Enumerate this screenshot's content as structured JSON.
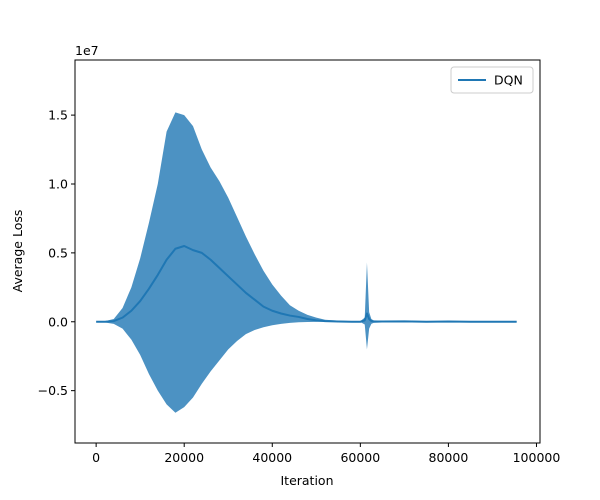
{
  "chart_data": {
    "type": "line",
    "xlabel": "Iteration",
    "ylabel": "Average Loss",
    "y_offset_text": "1e7",
    "xlim": [
      -4800,
      100800
    ],
    "ylim": [
      -0.88,
      1.9
    ],
    "x_ticks": [
      0,
      20000,
      40000,
      60000,
      80000,
      100000
    ],
    "x_tick_labels": [
      "0",
      "20000",
      "40000",
      "60000",
      "80000",
      "100000"
    ],
    "y_ticks": [
      -0.5,
      0.0,
      0.5,
      1.0,
      1.5
    ],
    "y_tick_labels": [
      "−0.5",
      "0.0",
      "0.5",
      "1.0",
      "1.5"
    ],
    "grid": false,
    "legend_position": "top-right",
    "colors": {
      "line": "#1f77b4",
      "band": "#1f77b4"
    },
    "series": [
      {
        "name": "DQN",
        "x": [
          0,
          2000,
          4000,
          6000,
          8000,
          10000,
          12000,
          14000,
          16000,
          18000,
          20000,
          22000,
          24000,
          26000,
          28000,
          30000,
          32000,
          34000,
          36000,
          38000,
          40000,
          42000,
          44000,
          46000,
          48000,
          50000,
          52000,
          55000,
          58000,
          60000,
          61000,
          61500,
          62000,
          62500,
          63000,
          65000,
          70000,
          75000,
          80000,
          85000,
          90000,
          95500
        ],
        "mean": [
          0,
          0,
          0.005,
          0.03,
          0.08,
          0.15,
          0.24,
          0.34,
          0.45,
          0.53,
          0.55,
          0.52,
          0.5,
          0.45,
          0.39,
          0.33,
          0.27,
          0.21,
          0.16,
          0.11,
          0.08,
          0.06,
          0.045,
          0.035,
          0.02,
          0.01,
          0.005,
          0.002,
          0,
          0,
          0.01,
          0.06,
          0.02,
          0.005,
          0.003,
          0.002,
          0.003,
          0,
          0.002,
          0,
          0,
          0
        ],
        "upper": [
          0,
          0.005,
          0.02,
          0.1,
          0.25,
          0.46,
          0.72,
          1.0,
          1.38,
          1.52,
          1.5,
          1.42,
          1.25,
          1.12,
          1.02,
          0.9,
          0.76,
          0.62,
          0.49,
          0.37,
          0.27,
          0.19,
          0.12,
          0.08,
          0.05,
          0.03,
          0.015,
          0.008,
          0.005,
          0.005,
          0.03,
          0.43,
          0.07,
          0.02,
          0.01,
          0.008,
          0.008,
          0.005,
          0.006,
          0.004,
          0.004,
          0.003
        ],
        "lower": [
          0,
          -0.005,
          -0.015,
          -0.05,
          -0.13,
          -0.24,
          -0.38,
          -0.5,
          -0.6,
          -0.66,
          -0.62,
          -0.55,
          -0.45,
          -0.36,
          -0.28,
          -0.2,
          -0.14,
          -0.09,
          -0.06,
          -0.04,
          -0.025,
          -0.015,
          -0.008,
          -0.004,
          -0.002,
          -0.001,
          0,
          0,
          0,
          -0.002,
          -0.02,
          -0.2,
          -0.05,
          -0.015,
          -0.008,
          -0.005,
          -0.004,
          -0.003,
          -0.003,
          -0.002,
          -0.002,
          -0.002
        ]
      }
    ]
  }
}
